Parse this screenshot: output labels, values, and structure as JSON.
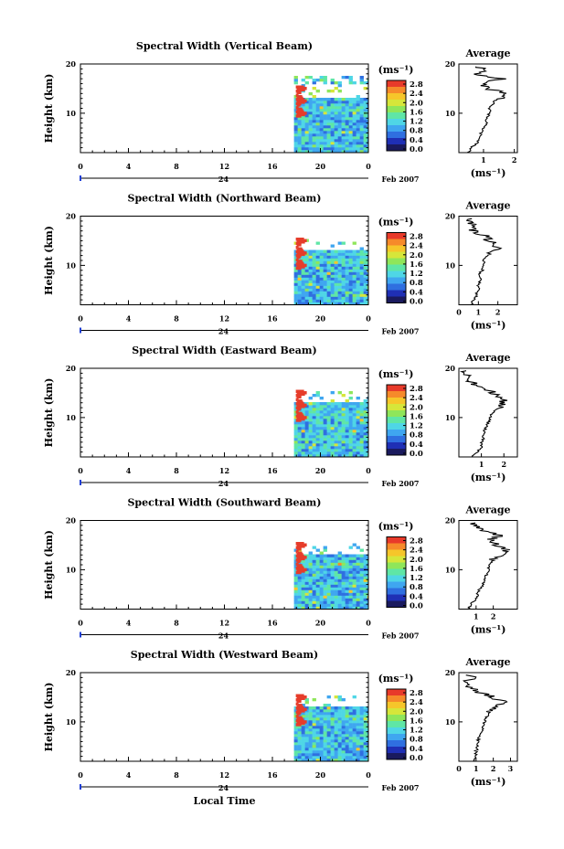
{
  "chart_data": [
    {
      "type": "heatmap",
      "title": "Spectral Width (Vertical Beam)",
      "ylabel": "Height (km)",
      "ylim": [
        2,
        20
      ],
      "yticks": [
        "10",
        "20"
      ],
      "xlim": [
        0,
        24
      ],
      "xticks": [
        "0",
        "4",
        "8",
        "12",
        "16",
        "20",
        "0"
      ],
      "date_marker": "24",
      "month_label": "Feb 2007",
      "data_start_hour": 17.8,
      "echo_top_km": 17.8,
      "colorbar": {
        "unit": "(ms⁻¹)",
        "ticks": [
          "2.8",
          "2.4",
          "2.0",
          "1.6",
          "1.2",
          "0.8",
          "0.4",
          "0.0"
        ]
      },
      "profile": {
        "title": "Average",
        "xlabel": "(ms⁻¹)",
        "xticks": [
          "1",
          "2"
        ],
        "xlim": [
          0.2,
          2.1
        ],
        "yticks": [
          "10",
          "20"
        ],
        "height_km": [
          2,
          3,
          4,
          5,
          6,
          7,
          8,
          9,
          10,
          11,
          12,
          13,
          14,
          15,
          16,
          17,
          18,
          19,
          19.5
        ],
        "width_ms": [
          0.5,
          0.6,
          0.8,
          0.9,
          0.9,
          1.0,
          1.1,
          1.1,
          1.2,
          1.2,
          1.3,
          1.5,
          1.8,
          1.1,
          0.9,
          1.6,
          0.7,
          1.2,
          0.6
        ]
      }
    },
    {
      "type": "heatmap",
      "title": "Spectral Width (Northward Beam)",
      "ylabel": "Height (km)",
      "ylim": [
        2,
        20
      ],
      "yticks": [
        "10",
        "20"
      ],
      "xlim": [
        0,
        24
      ],
      "xticks": [
        "0",
        "4",
        "8",
        "12",
        "16",
        "20",
        "0"
      ],
      "date_marker": "24",
      "month_label": "Feb 2007",
      "data_start_hour": 17.8,
      "echo_top_km": 15.5,
      "colorbar": {
        "unit": "(ms⁻¹)",
        "ticks": [
          "2.8",
          "2.4",
          "2.0",
          "1.6",
          "1.2",
          "0.8",
          "0.4",
          "0.0"
        ]
      },
      "profile": {
        "title": "Average",
        "xlabel": "(ms⁻¹)",
        "xticks": [
          "0",
          "1",
          "2"
        ],
        "xlim": [
          0,
          3
        ],
        "yticks": [
          "10",
          "20"
        ],
        "height_km": [
          2,
          3,
          4,
          5,
          6,
          7,
          8,
          9,
          10,
          11,
          12,
          13,
          14,
          15,
          16,
          17,
          18,
          19,
          19.5
        ],
        "width_ms": [
          0.6,
          0.8,
          0.9,
          1.0,
          1.0,
          1.1,
          1.0,
          1.2,
          1.2,
          1.3,
          1.4,
          1.9,
          2.0,
          1.5,
          1.4,
          0.7,
          0.9,
          0.4,
          0.8
        ]
      }
    },
    {
      "type": "heatmap",
      "title": "Spectral Width (Eastward Beam)",
      "ylabel": "Height (km)",
      "ylim": [
        2,
        20
      ],
      "yticks": [
        "10",
        "20"
      ],
      "xlim": [
        0,
        24
      ],
      "xticks": [
        "0",
        "4",
        "8",
        "12",
        "16",
        "20",
        "0"
      ],
      "date_marker": "24",
      "month_label": "Feb 2007",
      "data_start_hour": 17.8,
      "echo_top_km": 15.5,
      "colorbar": {
        "unit": "(ms⁻¹)",
        "ticks": [
          "2.8",
          "2.4",
          "2.0",
          "1.6",
          "1.2",
          "0.8",
          "0.4",
          "0.0"
        ]
      },
      "profile": {
        "title": "Average",
        "xlabel": "(ms⁻¹)",
        "xticks": [
          "1",
          "2"
        ],
        "xlim": [
          0,
          2.6
        ],
        "yticks": [
          "10",
          "20"
        ],
        "height_km": [
          2,
          3,
          4,
          5,
          6,
          7,
          8,
          9,
          10,
          11,
          12,
          13,
          14,
          15,
          16,
          17,
          18,
          19,
          19.5
        ],
        "width_ms": [
          0.6,
          0.8,
          1.0,
          1.0,
          1.1,
          1.1,
          1.2,
          1.3,
          1.4,
          1.5,
          1.8,
          2.0,
          1.9,
          1.5,
          1.2,
          0.6,
          0.5,
          0.2,
          0.4
        ]
      }
    },
    {
      "type": "heatmap",
      "title": "Spectral Width (Southward Beam)",
      "ylabel": "Height (km)",
      "ylim": [
        2,
        20
      ],
      "yticks": [
        "10",
        "20"
      ],
      "xlim": [
        0,
        24
      ],
      "xticks": [
        "0",
        "4",
        "8",
        "12",
        "16",
        "20",
        "0"
      ],
      "date_marker": "24",
      "month_label": "Feb 2007",
      "data_start_hour": 17.8,
      "echo_top_km": 15.5,
      "colorbar": {
        "unit": "(ms⁻¹)",
        "ticks": [
          "2.8",
          "2.4",
          "2.0",
          "1.6",
          "1.2",
          "0.8",
          "0.4",
          "0.0"
        ]
      },
      "profile": {
        "title": "Average",
        "xlabel": "(ms⁻¹)",
        "xticks": [
          "1",
          "2"
        ],
        "xlim": [
          0,
          3.4
        ],
        "yticks": [
          "10",
          "20"
        ],
        "height_km": [
          2,
          3,
          4,
          5,
          6,
          7,
          8,
          9,
          10,
          11,
          12,
          13,
          14,
          15,
          16,
          17,
          18,
          19,
          19.5
        ],
        "width_ms": [
          0.5,
          0.7,
          1.0,
          1.1,
          1.2,
          1.4,
          1.5,
          1.6,
          1.7,
          1.8,
          2.0,
          2.4,
          2.8,
          2.2,
          1.8,
          2.4,
          1.5,
          0.8,
          1.0
        ]
      }
    },
    {
      "type": "heatmap",
      "title": "Spectral Width (Westward Beam)",
      "ylabel": "Height (km)",
      "ylim": [
        2,
        20
      ],
      "yticks": [
        "10",
        "20"
      ],
      "xlim": [
        0,
        24
      ],
      "xticks": [
        "0",
        "4",
        "8",
        "12",
        "16",
        "20",
        "0"
      ],
      "date_marker": "24",
      "month_label": "Feb 2007",
      "data_start_hour": 17.8,
      "echo_top_km": 15.5,
      "colorbar": {
        "unit": "(ms⁻¹)",
        "ticks": [
          "2.8",
          "2.4",
          "2.0",
          "1.6",
          "1.2",
          "0.8",
          "0.4",
          "0.0"
        ]
      },
      "profile": {
        "title": "Average",
        "xlabel": "(ms⁻¹)",
        "xticks": [
          "0",
          "1",
          "2",
          "3"
        ],
        "xlim": [
          0,
          3.4
        ],
        "yticks": [
          "10",
          "20"
        ],
        "height_km": [
          2,
          3,
          4,
          5,
          6,
          7,
          8,
          9,
          10,
          11,
          12,
          13,
          14,
          15,
          16,
          17,
          18,
          19,
          19.5
        ],
        "width_ms": [
          0.9,
          1.0,
          1.0,
          1.1,
          1.1,
          1.2,
          1.3,
          1.4,
          1.5,
          1.6,
          1.8,
          2.2,
          2.6,
          2.0,
          1.2,
          0.6,
          0.4,
          0.8,
          0.5
        ]
      }
    }
  ],
  "bottom_xlabel": "Local Time",
  "colors": {
    "scale": [
      "#1a1a5e",
      "#1f2fb5",
      "#2f6fe0",
      "#3fa6f0",
      "#4fd6e6",
      "#5fe6a6",
      "#8fe65a",
      "#d6e63a",
      "#f6c62a",
      "#f68a2a",
      "#e83a2a"
    ],
    "echo_core": "#e63c2a",
    "time_marker": "#1f3fd6"
  }
}
